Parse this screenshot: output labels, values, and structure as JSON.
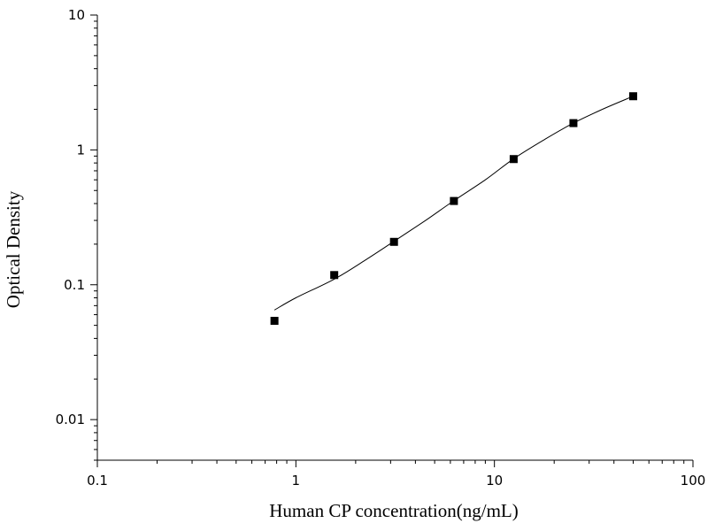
{
  "chart_data": {
    "type": "scatter",
    "title": "",
    "xlabel": "Human CP concentration(ng/mL)",
    "ylabel": "Optical Density",
    "x_scale": "log",
    "y_scale": "log",
    "xlim": [
      0.1,
      100
    ],
    "ylim": [
      0.005,
      10
    ],
    "x_ticks": [
      0.1,
      1,
      10,
      100
    ],
    "x_tick_labels": [
      "0.1",
      "1",
      "10",
      "100"
    ],
    "y_ticks": [
      0.01,
      0.1,
      1,
      10
    ],
    "y_tick_labels": [
      "0.01",
      "0.1",
      "1",
      "10"
    ],
    "grid": false,
    "legend": "none",
    "series": [
      {
        "kind": "points",
        "marker": "square",
        "color": "#000000",
        "x": [
          0.78,
          1.56,
          3.12,
          6.25,
          12.5,
          25,
          50
        ],
        "y": [
          0.054,
          0.118,
          0.208,
          0.418,
          0.855,
          1.58,
          2.5
        ]
      },
      {
        "kind": "fitted-curve",
        "color": "#000000",
        "x": [
          0.78,
          1.0,
          1.56,
          2.2,
          3.12,
          4.5,
          6.25,
          9.0,
          12.5,
          18.0,
          25,
          35,
          50
        ],
        "y": [
          0.065,
          0.08,
          0.11,
          0.15,
          0.21,
          0.3,
          0.42,
          0.6,
          0.86,
          1.2,
          1.58,
          2.0,
          2.5
        ]
      }
    ]
  }
}
